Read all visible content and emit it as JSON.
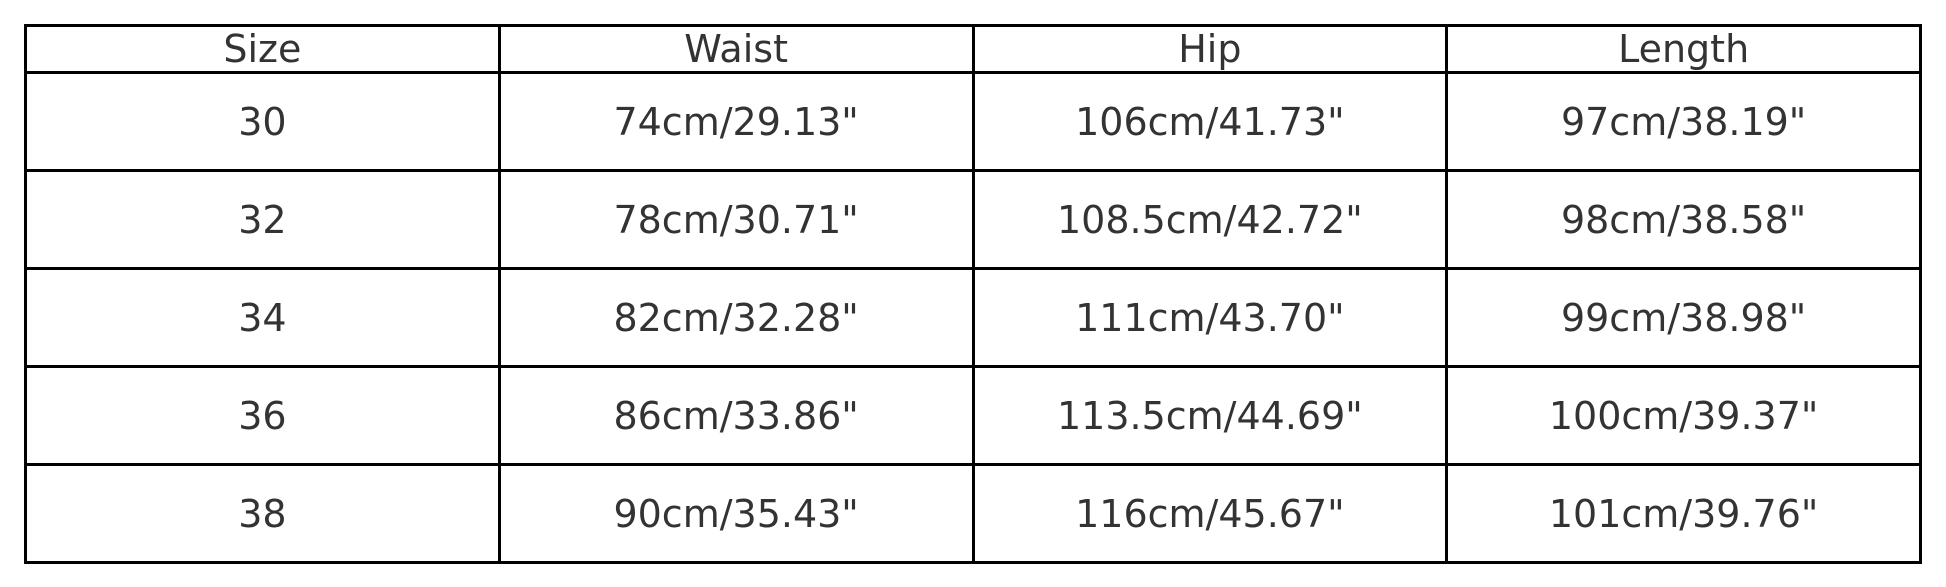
{
  "table": {
    "headers": [
      "Size",
      "Waist",
      "Hip",
      "Length"
    ],
    "rows": [
      [
        "30",
        "74cm/29.13\"",
        "106cm/41.73\"",
        "97cm/38.19\""
      ],
      [
        "32",
        "78cm/30.71\"",
        "108.5cm/42.72\"",
        "98cm/38.58\""
      ],
      [
        "34",
        "82cm/32.28\"",
        "111cm/43.70\"",
        "99cm/38.98\""
      ],
      [
        "36",
        "86cm/33.86\"",
        "113.5cm/44.69\"",
        "100cm/39.37\""
      ],
      [
        "38",
        "90cm/35.43\"",
        "116cm/45.67\"",
        "101cm/39.76\""
      ]
    ]
  }
}
